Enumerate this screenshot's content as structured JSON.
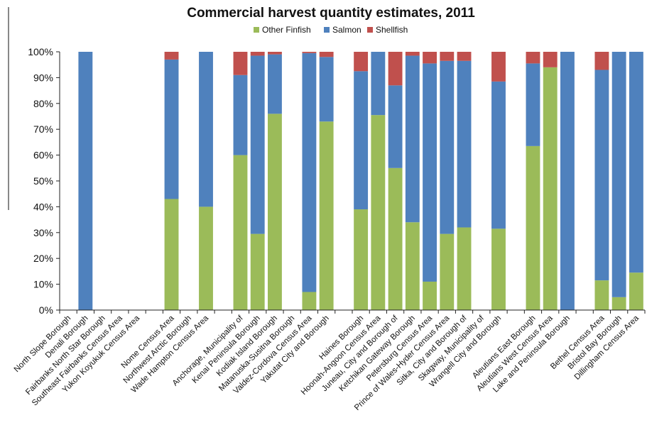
{
  "chart_data": {
    "type": "bar",
    "stacked": "percent",
    "title": "Commercial harvest quantity estimates, 2011",
    "xlabel": "",
    "ylabel": "",
    "ylim": [
      0,
      100
    ],
    "yticks": [
      "0%",
      "10%",
      "20%",
      "30%",
      "40%",
      "50%",
      "60%",
      "70%",
      "80%",
      "90%",
      "100%"
    ],
    "legend_position": "top",
    "grid": false,
    "categories": [
      "North Slope Borough",
      "Denali Borough",
      "Fairbanks North Star Borough",
      "Southeast Fairbanks Census Area",
      "Yukon Koyukuk Census Area",
      "",
      "Nome Census Area",
      "Northwest Arctic Borough",
      "Wade Hampton Census Area",
      "",
      "Anchorage, Municipality of",
      "Kenai Peninsula Borough",
      "Kodiak Island Borough",
      "Matanuska-Susitna Borough",
      "Valdez-Cordova Census Area",
      "Yakutat City and Borough",
      "",
      "Haines Borough",
      "Hoonah-Angoon Census Area",
      "Juneau, City and Borough of",
      "Ketchikan Gateway Borough",
      "Petersburg Census Area",
      "Prince of Wales-Hyder Census Area",
      "Sitka, City and Borough of",
      "Skagway, Municipality of",
      "Wrangell City and Borough",
      "",
      "Aleutians East Borough",
      "Aleutians West Census Area",
      "Lake and Peninsula Borough",
      "",
      "Bethel Census Area",
      "Bristol Bay Borough",
      "Dillingham Census Area"
    ],
    "series": [
      {
        "name": "Other Finfish",
        "color": "#9bbb59",
        "values": [
          0,
          0,
          0,
          0,
          0,
          0,
          43,
          0,
          40,
          0,
          60,
          29.5,
          76,
          0,
          7,
          73,
          0,
          39,
          75.5,
          55,
          34,
          11,
          29.5,
          32,
          0,
          31.5,
          0,
          63.5,
          94,
          0,
          0,
          11.5,
          5,
          14.5
        ]
      },
      {
        "name": "Salmon",
        "color": "#4f81bd",
        "values": [
          0,
          100,
          0,
          0,
          0,
          0,
          54,
          0,
          60,
          0,
          31,
          69,
          23,
          0,
          92.5,
          25,
          0,
          53.5,
          24.5,
          32,
          64.5,
          84.5,
          67,
          64.5,
          0,
          57,
          0,
          32,
          0,
          100,
          0,
          81.5,
          95,
          85.5
        ]
      },
      {
        "name": "Shellfish",
        "color": "#c0504d",
        "values": [
          0,
          0,
          0,
          0,
          0,
          0,
          3,
          0,
          0,
          0,
          9,
          1.5,
          1,
          0,
          0.5,
          2,
          0,
          7.5,
          0,
          13,
          1.5,
          4.5,
          3.5,
          3.5,
          0,
          11.5,
          0,
          4.5,
          6,
          0,
          0,
          7,
          0,
          0
        ]
      }
    ]
  }
}
